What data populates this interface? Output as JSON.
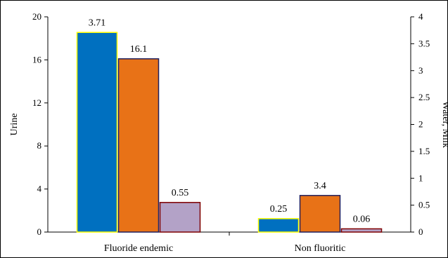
{
  "chart_data": {
    "type": "bar",
    "categories": [
      "Fluoride endemic",
      "Non fluoritic"
    ],
    "series": [
      {
        "values": [
          18.55,
          1.25
        ],
        "color": "#0070C0",
        "border": "#FFFF00"
      },
      {
        "values": [
          16.1,
          3.4
        ],
        "color": "#E87217",
        "border": "#1F1F5F"
      },
      {
        "values": [
          2.75,
          0.3
        ],
        "color": "#B3A2C7",
        "border": "#7F0000"
      }
    ],
    "data_labels": [
      [
        "3.71",
        "0.25"
      ],
      [
        "16.1",
        "3.4"
      ],
      [
        "0.55",
        "0.06"
      ]
    ],
    "ylabel": "Urine",
    "y2label": "Water, Milk",
    "ylim": [
      0,
      20
    ],
    "y2lim": [
      0,
      4
    ],
    "yticks": [
      "0",
      "4",
      "8",
      "12",
      "16",
      "20"
    ],
    "y2ticks": [
      "0",
      "0.5",
      "1",
      "1.5",
      "2",
      "2.5",
      "3",
      "3.5",
      "4"
    ],
    "grid": false,
    "legend": "none"
  }
}
